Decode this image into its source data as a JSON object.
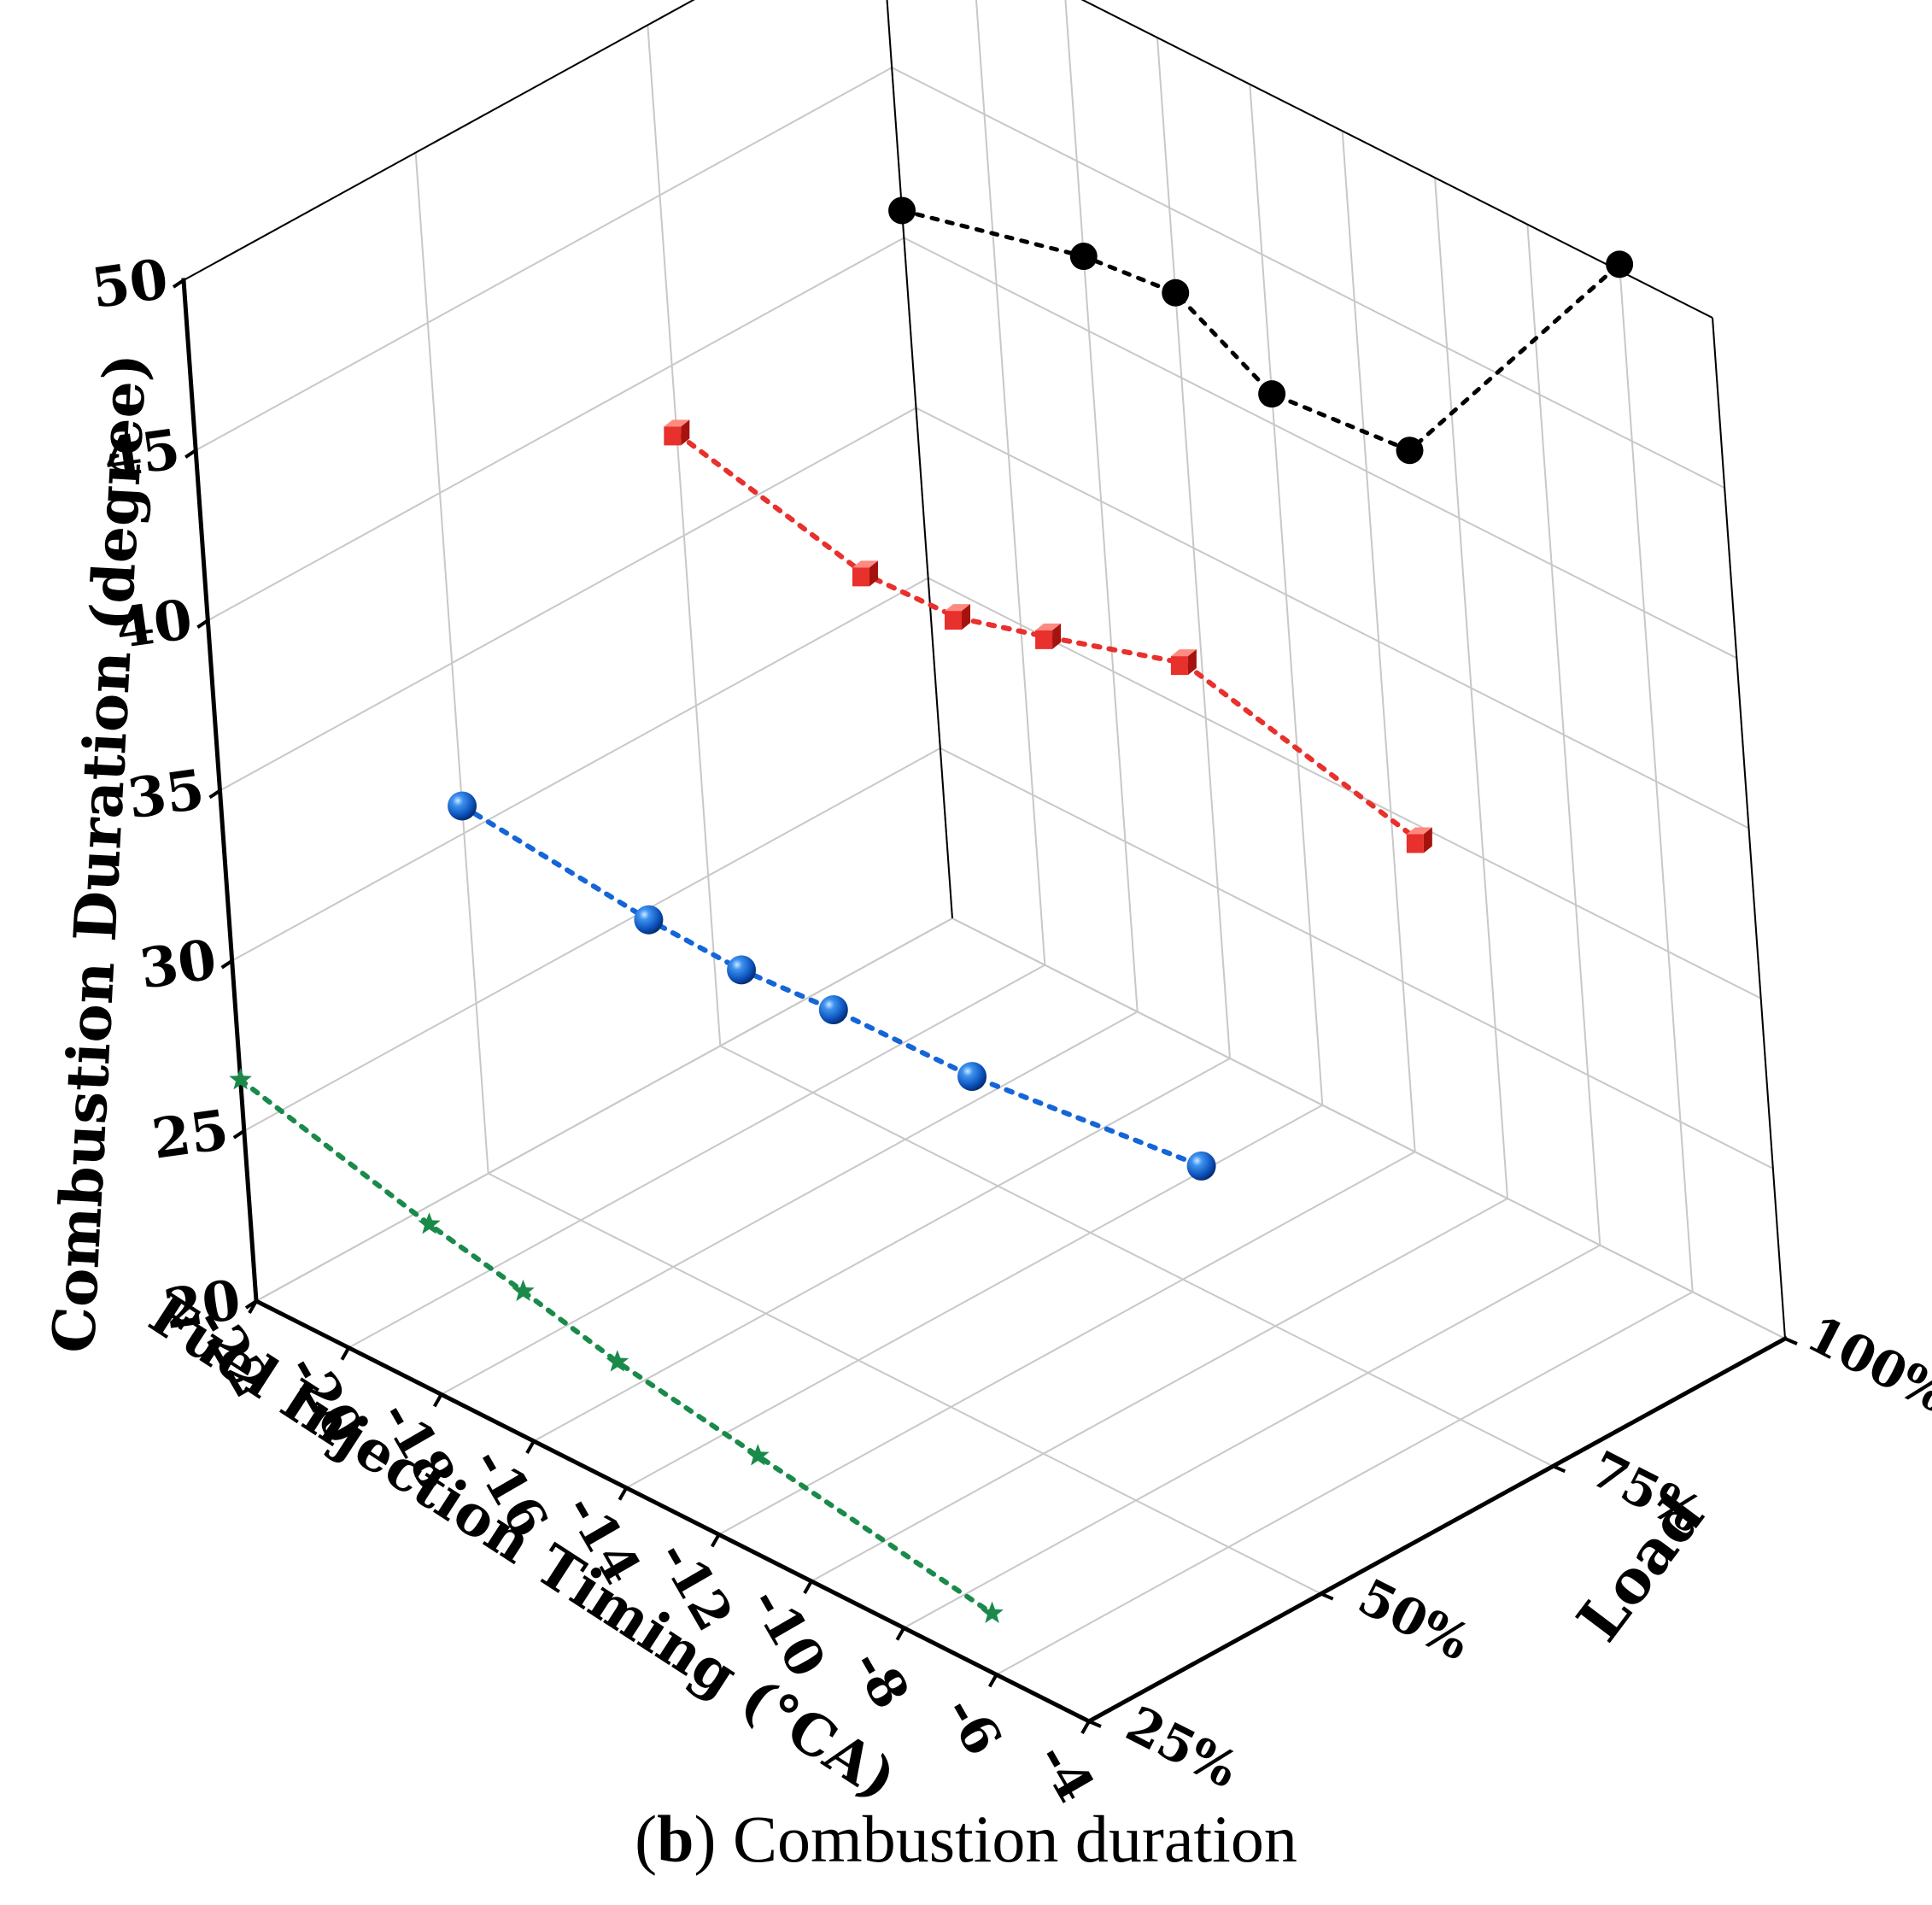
{
  "chart_data": {
    "type": "scatter3d",
    "title": "",
    "xlabel": "Fuel Injection Timing (°CA)",
    "ylabel": "Load",
    "zlabel": "Combustion Duration (degree)",
    "x_ticks": [
      "-22",
      "-20",
      "-18",
      "-16",
      "-14",
      "-12",
      "-10",
      "-8",
      "-6",
      "-4"
    ],
    "y_ticks": [
      "25%",
      "50%",
      "75%",
      "100%"
    ],
    "z_ticks": [
      "20",
      "25",
      "30",
      "35",
      "40",
      "45",
      "50"
    ],
    "xlim": [
      -22,
      -4
    ],
    "ylim": [
      1,
      4
    ],
    "zlim": [
      20,
      50
    ],
    "series": [
      {
        "name": "25%",
        "load": 1,
        "marker": "star",
        "color": "#1a8a4a",
        "x": [
          -22,
          -18,
          -16,
          -14,
          -11,
          -6
        ],
        "values": [
          26.5,
          25.0,
          24.4,
          23.7,
          23.0,
          21.8
        ]
      },
      {
        "name": "50%",
        "load": 2,
        "marker": "sphere",
        "color": "#1565d8",
        "x": [
          -22,
          -18,
          -16,
          -14,
          -11,
          -6
        ],
        "values": [
          30.8,
          30.2,
          30.1,
          30.3,
          30.4,
          31.2
        ]
      },
      {
        "name": "75%",
        "load": 3,
        "marker": "cube",
        "color": "#e8302c",
        "x": [
          -22,
          -18,
          -16,
          -14,
          -11,
          -6
        ],
        "values": [
          38.0,
          36.6,
          36.7,
          37.5,
          38.8,
          37.0
        ]
      },
      {
        "name": "100%",
        "load": 4,
        "marker": "circle",
        "color": "#000000",
        "x": [
          -22,
          -18,
          -16,
          -14,
          -11,
          -6
        ],
        "values": [
          40.8,
          42.2,
          42.5,
          40.9,
          41.3,
          50.2
        ]
      }
    ]
  },
  "caption": {
    "label": "b",
    "text": " Combustion duration"
  }
}
